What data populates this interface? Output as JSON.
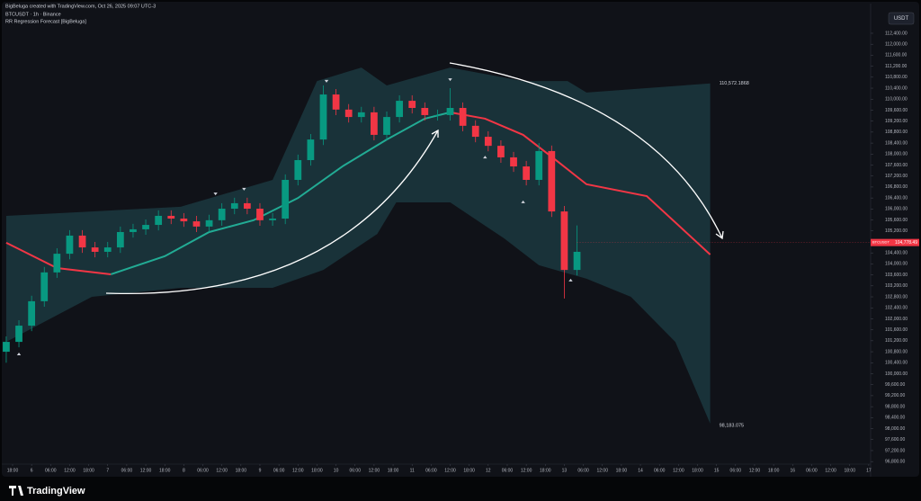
{
  "chart_data": {
    "type": "candlestick",
    "credit": "BigBeluga created with TradingView.com, Oct 26, 2025 09:07 UTC-3",
    "title": "BTCUSDT · 1h · Binance",
    "subtitle": "RR Regression Forecast [BigBeluga]",
    "currency": "USDT",
    "brand": "TradingView",
    "up_color": "#089981",
    "down_color": "#f23645",
    "x": [
      -2,
      2,
      6,
      10,
      14,
      18,
      22,
      26,
      30,
      34,
      38,
      42,
      46,
      50,
      54,
      58,
      62,
      66,
      70,
      74,
      78,
      82,
      86,
      90,
      94,
      98,
      102,
      106,
      110,
      114,
      118,
      122,
      126,
      130,
      134,
      138,
      142,
      146,
      150,
      154,
      158,
      162,
      166,
      170,
      174,
      178
    ],
    "open": [
      100800,
      101160,
      101750,
      102640,
      103690,
      104370,
      105030,
      104600,
      104440,
      104600,
      105160,
      105260,
      105420,
      105750,
      105650,
      105550,
      105360,
      105590,
      106010,
      106210,
      106010,
      105590,
      105650,
      107060,
      107780,
      108530,
      110170,
      109620,
      109350,
      109520,
      108700,
      109350,
      109940,
      109680,
      109420,
      109420,
      109680,
      109030,
      108630,
      108300,
      107880,
      107550,
      107060,
      108110,
      105910,
      103780
    ],
    "high": [
      101360,
      101950,
      102840,
      103890,
      104570,
      105230,
      105230,
      104800,
      104800,
      105360,
      105460,
      105620,
      105950,
      105950,
      105850,
      105750,
      105790,
      106210,
      106410,
      106410,
      106210,
      105850,
      107260,
      107980,
      108730,
      110500,
      110370,
      109820,
      109720,
      109720,
      109550,
      110140,
      110140,
      109880,
      109620,
      110400,
      109880,
      109230,
      108830,
      108500,
      108080,
      107750,
      108400,
      108310,
      106110,
      105400
    ],
    "low": [
      100400,
      100960,
      101550,
      102440,
      103490,
      104170,
      104400,
      104240,
      104240,
      104400,
      104960,
      105060,
      105220,
      105450,
      105350,
      105160,
      105160,
      105390,
      105810,
      105810,
      105390,
      105390,
      105450,
      106860,
      107580,
      108330,
      109420,
      109150,
      109150,
      108500,
      108500,
      109150,
      109480,
      109220,
      109220,
      109220,
      108830,
      108430,
      108100,
      107680,
      107350,
      106860,
      106860,
      105710,
      102740,
      103580
    ],
    "close": [
      101160,
      101750,
      102640,
      103690,
      104370,
      105030,
      104600,
      104440,
      104600,
      105160,
      105260,
      105420,
      105750,
      105650,
      105550,
      105360,
      105590,
      106010,
      106210,
      106010,
      105590,
      105650,
      107060,
      107780,
      108530,
      110170,
      109620,
      109350,
      109520,
      108700,
      109350,
      109940,
      109680,
      109420,
      109420,
      109680,
      109030,
      108630,
      108300,
      107880,
      107550,
      107060,
      108110,
      105910,
      103780,
      104440
    ],
    "regression": [
      {
        "color": "#f23645",
        "x": [
          -2,
          14,
          31
        ],
        "values": [
          104770,
          103850,
          103620
        ]
      },
      {
        "color": "#22ab94",
        "x": [
          31,
          48,
          62,
          76,
          90,
          104,
          118,
          130,
          138
        ],
        "values": [
          103620,
          104280,
          105160,
          105590,
          106400,
          107550,
          108530,
          109290,
          109520
        ]
      },
      {
        "color": "#f23645",
        "x": [
          138,
          149,
          161,
          172,
          181,
          200,
          220
        ],
        "values": [
          109520,
          109290,
          108700,
          107720,
          106900,
          106470,
          104340
        ]
      }
    ],
    "band_color": "#1c3d44",
    "band_upper": {
      "x": [
        -2,
        25,
        53,
        82,
        96,
        110,
        118,
        138,
        161,
        175,
        181,
        220
      ],
      "values": [
        105750,
        105910,
        106080,
        107060,
        110660,
        111150,
        110500,
        111150,
        110660,
        110660,
        110240,
        110572.1868
      ],
      "value_labels": [
        null,
        null,
        null,
        null,
        null,
        null,
        null,
        null,
        null,
        null,
        null,
        "110,572.1868"
      ]
    },
    "band_lower": {
      "x": [
        -2,
        25,
        53,
        82,
        98,
        115,
        121,
        138,
        155,
        166,
        181,
        195,
        209,
        220
      ],
      "values": [
        101160,
        102800,
        103130,
        103130,
        103780,
        105090,
        106240,
        106240,
        104930,
        103950,
        103460,
        102800,
        101160,
        98183.075
      ],
      "value_labels": [
        null,
        null,
        null,
        null,
        null,
        null,
        null,
        null,
        null,
        null,
        null,
        null,
        null,
        "98,183.075"
      ]
    },
    "signals": [
      {
        "x": 99,
        "value": 110600,
        "direction": "down"
      },
      {
        "x": 64,
        "value": 106500,
        "direction": "down"
      },
      {
        "x": 73,
        "value": 106670,
        "direction": "down"
      },
      {
        "x": 138,
        "value": 110660,
        "direction": "down"
      },
      {
        "x": 2,
        "value": 100770,
        "direction": "up"
      },
      {
        "x": 149,
        "value": 107940,
        "direction": "up"
      },
      {
        "x": 161,
        "value": 106310,
        "direction": "up"
      },
      {
        "x": 176,
        "value": 103460,
        "direction": "up"
      }
    ],
    "last_price": {
      "symbol": "BTCUSDT",
      "value": 104778.49,
      "label": "104,778.49"
    },
    "grid": false,
    "xlim": [
      -3.4,
      270.6
    ],
    "ylim": [
      96740,
      113120
    ],
    "xticks": [
      {
        "value": 0,
        "label": "18:00"
      },
      {
        "value": 6,
        "label": "6"
      },
      {
        "value": 12,
        "label": "06:00"
      },
      {
        "value": 18,
        "label": "12:00"
      },
      {
        "value": 24,
        "label": "18:00"
      },
      {
        "value": 30,
        "label": "7"
      },
      {
        "value": 36,
        "label": "06:00"
      },
      {
        "value": 42,
        "label": "12:00"
      },
      {
        "value": 48,
        "label": "18:00"
      },
      {
        "value": 54,
        "label": "8"
      },
      {
        "value": 60,
        "label": "06:00"
      },
      {
        "value": 66,
        "label": "12:00"
      },
      {
        "value": 72,
        "label": "18:00"
      },
      {
        "value": 78,
        "label": "9"
      },
      {
        "value": 84,
        "label": "06:00"
      },
      {
        "value": 90,
        "label": "12:00"
      },
      {
        "value": 96,
        "label": "18:00"
      },
      {
        "value": 102,
        "label": "10"
      },
      {
        "value": 108,
        "label": "06:00"
      },
      {
        "value": 114,
        "label": "12:00"
      },
      {
        "value": 120,
        "label": "18:00"
      },
      {
        "value": 126,
        "label": "11"
      },
      {
        "value": 132,
        "label": "06:00"
      },
      {
        "value": 138,
        "label": "12:00"
      },
      {
        "value": 144,
        "label": "18:00"
      },
      {
        "value": 150,
        "label": "12"
      },
      {
        "value": 156,
        "label": "06:00"
      },
      {
        "value": 162,
        "label": "12:00"
      },
      {
        "value": 168,
        "label": "18:00"
      },
      {
        "value": 174,
        "label": "13"
      },
      {
        "value": 180,
        "label": "06:00"
      },
      {
        "value": 186,
        "label": "12:00"
      },
      {
        "value": 192,
        "label": "18:00"
      },
      {
        "value": 198,
        "label": "14"
      },
      {
        "value": 204,
        "label": "06:00"
      },
      {
        "value": 210,
        "label": "12:00"
      },
      {
        "value": 216,
        "label": "18:00"
      },
      {
        "value": 222,
        "label": "15"
      },
      {
        "value": 228,
        "label": "06:00"
      },
      {
        "value": 234,
        "label": "12:00"
      },
      {
        "value": 240,
        "label": "18:00"
      },
      {
        "value": 246,
        "label": "16"
      },
      {
        "value": 252,
        "label": "06:00"
      },
      {
        "value": 258,
        "label": "12:00"
      },
      {
        "value": 264,
        "label": "18:00"
      },
      {
        "value": 270,
        "label": "17"
      }
    ],
    "yticks": [
      {
        "value": 96800,
        "label": "96,800.00"
      },
      {
        "value": 97200,
        "label": "97,200.00"
      },
      {
        "value": 97600,
        "label": "97,600.00"
      },
      {
        "value": 98000,
        "label": "98,000.00"
      },
      {
        "value": 98400,
        "label": "98,400.00"
      },
      {
        "value": 98800,
        "label": "98,800.00"
      },
      {
        "value": 99200,
        "label": "99,200.00"
      },
      {
        "value": 99600,
        "label": "99,600.00"
      },
      {
        "value": 100000,
        "label": "100,000.00"
      },
      {
        "value": 100400,
        "label": "100,400.00"
      },
      {
        "value": 100800,
        "label": "100,800.00"
      },
      {
        "value": 101200,
        "label": "101,200.00"
      },
      {
        "value": 101600,
        "label": "101,600.00"
      },
      {
        "value": 102000,
        "label": "102,000.00"
      },
      {
        "value": 102400,
        "label": "102,400.00"
      },
      {
        "value": 102800,
        "label": "102,800.00"
      },
      {
        "value": 103200,
        "label": "103,200.00"
      },
      {
        "value": 103600,
        "label": "103,600.00"
      },
      {
        "value": 104000,
        "label": "104,000.00"
      },
      {
        "value": 104400,
        "label": "104,400.00"
      },
      {
        "value": 104800,
        "label": "104,800.00"
      },
      {
        "value": 105200,
        "label": "105,200.00"
      },
      {
        "value": 105600,
        "label": "105,600.00"
      },
      {
        "value": 106000,
        "label": "106,000.00"
      },
      {
        "value": 106400,
        "label": "106,400.00"
      },
      {
        "value": 106800,
        "label": "106,800.00"
      },
      {
        "value": 107200,
        "label": "107,200.00"
      },
      {
        "value": 107600,
        "label": "107,600.00"
      },
      {
        "value": 108000,
        "label": "108,000.00"
      },
      {
        "value": 108400,
        "label": "108,400.00"
      },
      {
        "value": 108800,
        "label": "108,800.00"
      },
      {
        "value": 109200,
        "label": "109,200.00"
      },
      {
        "value": 109600,
        "label": "109,600.00"
      },
      {
        "value": 110000,
        "label": "110,000.00"
      },
      {
        "value": 110400,
        "label": "110,400.00"
      },
      {
        "value": 110800,
        "label": "110,800.00"
      },
      {
        "value": 111200,
        "label": "111,200.00"
      },
      {
        "value": 111600,
        "label": "111,600.00"
      },
      {
        "value": 112000,
        "label": "112,000.00"
      },
      {
        "value": 112400,
        "label": "112,400.00"
      }
    ]
  }
}
